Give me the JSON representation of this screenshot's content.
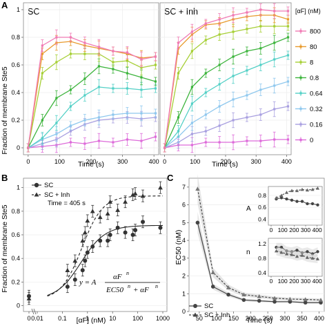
{
  "panelA": {
    "label": "A",
    "ylabel": "Fraction of membrane Ste5",
    "xlabel": "Time (s)",
    "legend_title": "[αF] (nM)",
    "legend_entries": [
      "800",
      "80",
      "8",
      "0.8",
      "0.64",
      "0.32",
      "0.16",
      "0"
    ],
    "colors": [
      "#f07ab4",
      "#e89a2c",
      "#a6cf35",
      "#3cb43c",
      "#53d0c6",
      "#8fc8ee",
      "#a89fe0",
      "#dd6ad9"
    ],
    "yticks": [
      "0",
      "0.2",
      "0.4",
      "0.6",
      "0.8",
      "1"
    ],
    "xticks": [
      "0",
      "100",
      "200",
      "300",
      "400"
    ],
    "subplots": [
      {
        "title": "SC"
      },
      {
        "title": "SC + Inh"
      }
    ]
  },
  "panelB": {
    "label": "B",
    "ylabel": "Fraction of membrane Ste5",
    "xlabel": "[αF] (nM)",
    "annotation": "Time = 405 s",
    "legend": [
      "SC",
      "SC + Inh"
    ],
    "xticks": [
      "0",
      "0.01",
      "0.1",
      "1",
      "10",
      "100",
      "1000"
    ],
    "yticks": [
      "0",
      "0.2",
      "0.4",
      "0.6",
      "0.8",
      "1"
    ],
    "equation": {
      "lhs": "y = A",
      "numerator": "αF",
      "exp": "n",
      "denominator": "EC50",
      "plus": "+ αF"
    }
  },
  "panelC": {
    "label": "C",
    "ylabel": "EC50 (nM)",
    "xlabel": "Time (s)",
    "legend": [
      "SC",
      "SC + Inh"
    ],
    "xticks": [
      "50",
      "100",
      "150",
      "200",
      "250",
      "300",
      "350",
      "400"
    ],
    "yticks": [
      "0",
      "1",
      "2",
      "3",
      "4",
      "5",
      "6",
      "7"
    ],
    "insetA": {
      "label": "A",
      "yticks": [
        "0.4",
        "0.6",
        "0.8"
      ],
      "xticks": [
        "0",
        "100",
        "200",
        "300",
        "400"
      ]
    },
    "insetN": {
      "label": "n",
      "yticks": [
        "0.4",
        "0.8",
        "1.2"
      ],
      "xticks": [
        "0",
        "100",
        "200",
        "300",
        "400"
      ]
    }
  },
  "chart_data": [
    {
      "type": "line",
      "title": "SC",
      "xlabel": "Time (s)",
      "ylabel": "Fraction of membrane Ste5",
      "xlim": [
        -15,
        415
      ],
      "ylim": [
        -0.05,
        1.05
      ],
      "x": [
        0,
        45,
        90,
        135,
        180,
        225,
        270,
        315,
        360,
        405
      ],
      "series": [
        {
          "name": "800",
          "values": [
            0.0,
            0.74,
            0.8,
            0.8,
            0.76,
            0.73,
            0.7,
            0.69,
            0.64,
            0.66
          ]
        },
        {
          "name": "80",
          "values": [
            0.0,
            0.68,
            0.76,
            0.77,
            0.74,
            0.72,
            0.7,
            0.68,
            0.65,
            0.66
          ]
        },
        {
          "name": "8",
          "values": [
            0.0,
            0.54,
            0.62,
            0.68,
            0.68,
            0.68,
            0.62,
            0.63,
            0.58,
            0.6
          ]
        },
        {
          "name": "0.8",
          "values": [
            0.0,
            0.2,
            0.36,
            0.42,
            0.5,
            0.59,
            0.57,
            0.54,
            0.51,
            0.48
          ]
        },
        {
          "name": "0.64",
          "values": [
            0.0,
            0.07,
            0.18,
            0.3,
            0.38,
            0.44,
            0.43,
            0.43,
            0.42,
            0.43
          ]
        },
        {
          "name": "0.32",
          "values": [
            0.0,
            0.06,
            0.1,
            0.16,
            0.2,
            0.22,
            0.24,
            0.25,
            0.25,
            0.25
          ]
        },
        {
          "name": "0.16",
          "values": [
            0.0,
            0.03,
            0.06,
            0.12,
            0.17,
            0.2,
            0.21,
            0.22,
            0.21,
            0.22
          ]
        },
        {
          "name": "0",
          "values": [
            0.0,
            0.01,
            0.02,
            0.04,
            0.03,
            0.05,
            0.04,
            0.06,
            0.05,
            0.08
          ]
        }
      ]
    },
    {
      "type": "line",
      "title": "SC + Inh",
      "xlabel": "Time (s)",
      "ylabel": "Fraction of membrane Ste5",
      "xlim": [
        -15,
        415
      ],
      "ylim": [
        -0.05,
        1.05
      ],
      "x": [
        0,
        45,
        90,
        135,
        180,
        225,
        270,
        315,
        360,
        405
      ],
      "series": [
        {
          "name": "800",
          "values": [
            0.0,
            0.76,
            0.84,
            0.9,
            0.93,
            0.96,
            0.98,
            1.0,
            0.99,
            0.99
          ]
        },
        {
          "name": "80",
          "values": [
            0.0,
            0.72,
            0.82,
            0.89,
            0.9,
            0.93,
            0.95,
            0.96,
            0.96,
            0.93
          ]
        },
        {
          "name": "8",
          "values": [
            0.0,
            0.54,
            0.7,
            0.78,
            0.82,
            0.84,
            0.86,
            0.88,
            0.88,
            0.88
          ]
        },
        {
          "name": "0.8",
          "values": [
            0.0,
            0.22,
            0.44,
            0.54,
            0.6,
            0.66,
            0.7,
            0.72,
            0.76,
            0.8
          ]
        },
        {
          "name": "0.64",
          "values": [
            0.0,
            0.12,
            0.32,
            0.4,
            0.46,
            0.52,
            0.56,
            0.6,
            0.64,
            0.67
          ]
        },
        {
          "name": "0.32",
          "values": [
            0.0,
            0.08,
            0.18,
            0.24,
            0.3,
            0.35,
            0.38,
            0.42,
            0.45,
            0.48
          ]
        },
        {
          "name": "0.16",
          "values": [
            0.0,
            0.04,
            0.1,
            0.12,
            0.16,
            0.2,
            0.22,
            0.24,
            0.28,
            0.3
          ]
        },
        {
          "name": "0",
          "values": [
            0.0,
            0.02,
            0.02,
            0.04,
            0.04,
            0.04,
            0.05,
            0.05,
            0.06,
            0.06
          ]
        }
      ]
    },
    {
      "type": "scatter",
      "xlabel": "[αF] (nM)",
      "ylabel": "Fraction of membrane Ste5",
      "xscale": "log",
      "ylim": [
        -0.05,
        1.08
      ],
      "series": [
        {
          "name": "SC",
          "x": [
            0.01,
            0.16,
            0.32,
            0.64,
            0.8,
            1.0,
            1.6,
            3.2,
            6.4,
            8,
            16,
            32,
            64,
            80,
            160,
            800
          ],
          "values": [
            0.08,
            0.16,
            0.22,
            0.3,
            0.38,
            0.45,
            0.5,
            0.55,
            0.55,
            0.6,
            0.66,
            0.62,
            0.6,
            0.64,
            0.71,
            0.66
          ],
          "fit": "solid"
        },
        {
          "name": "SC + Inh",
          "x": [
            0.01,
            0.16,
            0.32,
            0.64,
            0.8,
            1.0,
            1.6,
            3.2,
            6.4,
            8,
            16,
            32,
            64,
            80,
            160,
            800
          ],
          "values": [
            0.06,
            0.3,
            0.38,
            0.55,
            0.62,
            0.72,
            0.8,
            0.75,
            0.78,
            0.88,
            0.81,
            0.88,
            0.94,
            0.95,
            0.93,
            1.0
          ],
          "fit": "dashed"
        }
      ]
    },
    {
      "type": "line",
      "xlabel": "Time (s)",
      "ylabel": "EC50 (nM)",
      "xlim": [
        20,
        415
      ],
      "ylim": [
        0,
        7.5
      ],
      "x": [
        45,
        90,
        135,
        180,
        225,
        270,
        315,
        360,
        405
      ],
      "series": [
        {
          "name": "SC",
          "values": [
            5.0,
            1.4,
            0.95,
            0.65,
            0.6,
            0.55,
            0.55,
            0.5,
            0.5
          ]
        },
        {
          "name": "SC + Inh",
          "values": [
            6.9,
            2.2,
            1.35,
            0.95,
            0.85,
            0.75,
            0.7,
            0.68,
            0.65
          ]
        }
      ]
    },
    {
      "type": "line",
      "ylabel": "A",
      "xlim": [
        0,
        420
      ],
      "ylim": [
        0.3,
        0.95
      ],
      "x": [
        45,
        90,
        135,
        180,
        225,
        270,
        315,
        360,
        405
      ],
      "series": [
        {
          "name": "SC",
          "values": [
            0.74,
            0.76,
            0.74,
            0.72,
            0.7,
            0.7,
            0.66,
            0.66,
            0.64
          ]
        },
        {
          "name": "SC + Inh",
          "values": [
            0.76,
            0.8,
            0.85,
            0.88,
            0.88,
            0.9,
            0.89,
            0.9,
            0.92
          ]
        }
      ]
    },
    {
      "type": "line",
      "ylabel": "n",
      "xlim": [
        0,
        420
      ],
      "ylim": [
        0.3,
        1.35
      ],
      "x": [
        45,
        90,
        135,
        180,
        225,
        270,
        315,
        360,
        405
      ],
      "series": [
        {
          "name": "SC",
          "values": [
            1.1,
            1.1,
            1.0,
            0.98,
            1.02,
            0.95,
            0.98,
            0.92,
            0.98
          ]
        },
        {
          "name": "SC + Inh",
          "values": [
            1.0,
            0.96,
            0.92,
            0.9,
            0.85,
            0.88,
            0.82,
            0.8,
            0.78
          ]
        }
      ]
    }
  ]
}
